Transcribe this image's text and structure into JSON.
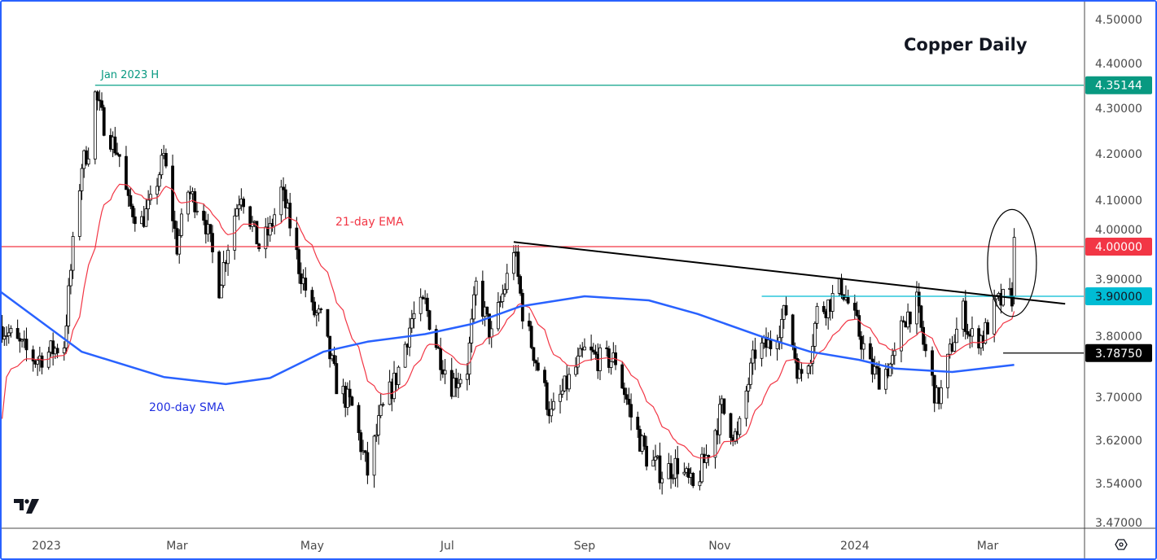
{
  "chart_data": {
    "type": "candlestick",
    "title": "Copper Daily",
    "scale": "log",
    "grid": false,
    "ylim": [
      3.45,
      4.53
    ],
    "xlim": [
      "2022-12-11",
      "2024-04-05"
    ],
    "y_ticks": [
      "4.50000",
      "4.40000",
      "4.30000",
      "4.20000",
      "4.10000",
      "4.00000",
      "3.90000",
      "3.80000",
      "3.70000",
      "3.62000",
      "3.54000",
      "3.47000"
    ],
    "x_ticks": [
      {
        "label": "2023",
        "date": "2023-01-01"
      },
      {
        "label": "Mar",
        "date": "2023-03-01"
      },
      {
        "label": "May",
        "date": "2023-05-01"
      },
      {
        "label": "Jul",
        "date": "2023-07-01"
      },
      {
        "label": "Sep",
        "date": "2023-09-01"
      },
      {
        "label": "Nov",
        "date": "2023-11-01"
      },
      {
        "label": "2024",
        "date": "2024-01-01"
      },
      {
        "label": "Mar",
        "date": "2024-03-01"
      }
    ],
    "price_path": [
      [
        "2022-12-12",
        3.84
      ],
      [
        "2022-12-19",
        3.806
      ],
      [
        "2022-12-27",
        3.774
      ],
      [
        "2023-01-09",
        3.806
      ],
      [
        "2023-01-13",
        4.0
      ],
      [
        "2023-01-17",
        4.177
      ],
      [
        "2023-01-20",
        4.21
      ],
      [
        "2023-01-23",
        4.33
      ],
      [
        "2023-01-27",
        4.265
      ],
      [
        "2023-02-03",
        4.195
      ],
      [
        "2023-02-07",
        4.09
      ],
      [
        "2023-02-13",
        4.054
      ],
      [
        "2023-02-17",
        4.09
      ],
      [
        "2023-02-23",
        4.195
      ],
      [
        "2023-03-01",
        4.0
      ],
      [
        "2023-03-06",
        4.12
      ],
      [
        "2023-03-13",
        4.07
      ],
      [
        "2023-03-20",
        3.92
      ],
      [
        "2023-03-27",
        4.07
      ],
      [
        "2023-03-30",
        4.12
      ],
      [
        "2023-04-07",
        4.0
      ],
      [
        "2023-04-12",
        4.035
      ],
      [
        "2023-04-17",
        4.12
      ],
      [
        "2023-04-20",
        4.07
      ],
      [
        "2023-04-25",
        3.96
      ],
      [
        "2023-05-01",
        3.87
      ],
      [
        "2023-05-05",
        3.855
      ],
      [
        "2023-05-12",
        3.726
      ],
      [
        "2023-05-19",
        3.68
      ],
      [
        "2023-05-26",
        3.56
      ],
      [
        "2023-06-01",
        3.665
      ],
      [
        "2023-06-08",
        3.74
      ],
      [
        "2023-06-15",
        3.855
      ],
      [
        "2023-06-21",
        3.885
      ],
      [
        "2023-06-27",
        3.79
      ],
      [
        "2023-07-03",
        3.726
      ],
      [
        "2023-07-10",
        3.758
      ],
      [
        "2023-07-14",
        3.92
      ],
      [
        "2023-07-21",
        3.82
      ],
      [
        "2023-07-28",
        3.936
      ],
      [
        "2023-07-31",
        4.0
      ],
      [
        "2023-08-04",
        3.87
      ],
      [
        "2023-08-10",
        3.774
      ],
      [
        "2023-08-17",
        3.665
      ],
      [
        "2023-08-24",
        3.726
      ],
      [
        "2023-09-01",
        3.79
      ],
      [
        "2023-09-08",
        3.774
      ],
      [
        "2023-09-15",
        3.774
      ],
      [
        "2023-09-22",
        3.665
      ],
      [
        "2023-09-29",
        3.59
      ],
      [
        "2023-10-06",
        3.56
      ],
      [
        "2023-10-13",
        3.575
      ],
      [
        "2023-10-20",
        3.528
      ],
      [
        "2023-10-26",
        3.59
      ],
      [
        "2023-11-02",
        3.68
      ],
      [
        "2023-11-09",
        3.62
      ],
      [
        "2023-11-13",
        3.71
      ],
      [
        "2023-11-17",
        3.79
      ],
      [
        "2023-11-24",
        3.806
      ],
      [
        "2023-12-01",
        3.87
      ],
      [
        "2023-12-07",
        3.74
      ],
      [
        "2023-12-12",
        3.79
      ],
      [
        "2023-12-15",
        3.87
      ],
      [
        "2023-12-20",
        3.885
      ],
      [
        "2023-12-26",
        3.92
      ],
      [
        "2024-01-02",
        3.84
      ],
      [
        "2024-01-08",
        3.758
      ],
      [
        "2024-01-12",
        3.74
      ],
      [
        "2024-01-19",
        3.774
      ],
      [
        "2024-01-23",
        3.855
      ],
      [
        "2024-01-29",
        3.885
      ],
      [
        "2024-02-01",
        3.806
      ],
      [
        "2024-02-07",
        3.695
      ],
      [
        "2024-02-09",
        3.71
      ],
      [
        "2024-02-14",
        3.806
      ],
      [
        "2024-02-19",
        3.87
      ],
      [
        "2024-02-22",
        3.82
      ],
      [
        "2024-02-28",
        3.82
      ],
      [
        "2024-03-05",
        3.885
      ],
      [
        "2024-03-12",
        3.9
      ],
      [
        "2024-03-13",
        4.02
      ]
    ],
    "series": [
      {
        "name": "21-day EMA",
        "type": "ema",
        "period": 21,
        "color": "#f23645"
      },
      {
        "name": "200-day SMA",
        "type": "sma",
        "color": "#2962ff",
        "points": [
          [
            "2022-12-11",
            3.91
          ],
          [
            "2023-01-17",
            3.79
          ],
          [
            "2023-02-23",
            3.74
          ],
          [
            "2023-03-23",
            3.726
          ],
          [
            "2023-04-12",
            3.738
          ],
          [
            "2023-05-06",
            3.79
          ],
          [
            "2023-05-26",
            3.81
          ],
          [
            "2023-06-21",
            3.825
          ],
          [
            "2023-07-12",
            3.845
          ],
          [
            "2023-08-03",
            3.88
          ],
          [
            "2023-09-01",
            3.9
          ],
          [
            "2023-09-30",
            3.892
          ],
          [
            "2023-10-22",
            3.865
          ],
          [
            "2023-11-20",
            3.82
          ],
          [
            "2023-12-12",
            3.79
          ],
          [
            "2024-01-03",
            3.774
          ],
          [
            "2024-01-19",
            3.757
          ],
          [
            "2024-02-14",
            3.75
          ],
          [
            "2024-03-13",
            3.764
          ]
        ]
      }
    ],
    "annotations": {
      "jan_high_label": "Jan 2023 H",
      "ema_label": "21-day EMA",
      "sma_label": "200-day SMA"
    },
    "levels": [
      {
        "value": 4.35144,
        "label": "4.35144",
        "color": "#089981",
        "line": "#22ab94",
        "text_color": "#ffffff",
        "from": "2023-01-23"
      },
      {
        "value": 4.0,
        "label": "4.00000",
        "color": "#f23645",
        "line": "#f23645",
        "text_color": "#ffffff",
        "from": "2022-12-11"
      },
      {
        "value": 3.9,
        "label": "3.90000",
        "color": "#00bcd4",
        "line": "#00bcd4",
        "text_color": "#131722",
        "from": "2023-11-20"
      },
      {
        "value": 3.7875,
        "label": "3.78750",
        "color": "#000000",
        "line": "#000000",
        "text_color": "#ffffff",
        "from": "2024-03-08"
      }
    ],
    "trendline": {
      "from": [
        "2023-07-31",
        4.01
      ],
      "to": [
        "2024-04-05",
        3.885
      ],
      "color": "#000000"
    },
    "highlight_ellipse": {
      "date": "2024-03-12",
      "high": 4.08,
      "low": 3.86
    }
  },
  "colors": {
    "up_body": "#ffffff",
    "down_body": "#000000",
    "wick": "#000000",
    "axis_text": "#4a4a4a",
    "frame": "#2962ff"
  }
}
